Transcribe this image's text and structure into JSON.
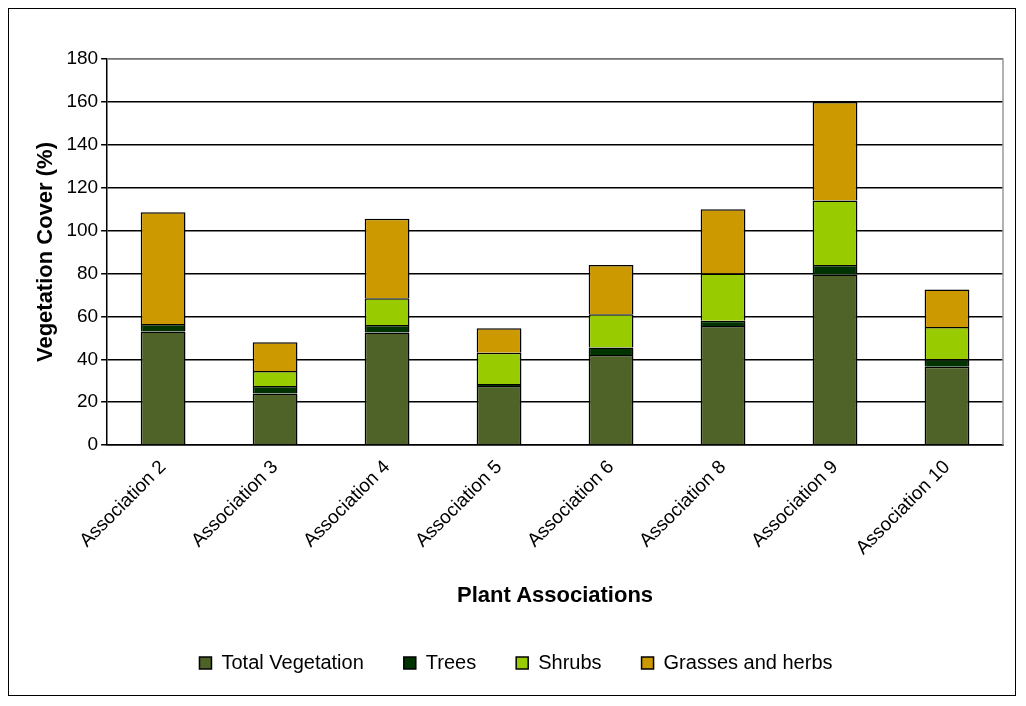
{
  "chart_data": {
    "type": "bar",
    "stacked": true,
    "xlabel": "Plant Associations",
    "ylabel": "Vegetation Cover (%)",
    "categories": [
      "Association 2",
      "Association 3",
      "Association 4",
      "Association 5",
      "Association 6",
      "Association 8",
      "Association 9",
      "Association 10"
    ],
    "series": [
      {
        "name": "Total Vegetation",
        "color": "#4f6228",
        "values": [
          53,
          24,
          52.5,
          27.5,
          42,
          55.5,
          79.5,
          36.5
        ]
      },
      {
        "name": "Trees",
        "color": "#003300",
        "values": [
          3.5,
          3.5,
          3.5,
          1,
          3.5,
          2.5,
          4.5,
          3.5
        ]
      },
      {
        "name": "Shrubs",
        "color": "#99cc00",
        "values": [
          0,
          7,
          12.5,
          14.5,
          15.5,
          22,
          30,
          15
        ]
      },
      {
        "name": "Grasses and herbs",
        "color": "#cc9900",
        "values": [
          52,
          13.5,
          37,
          11.5,
          23,
          30,
          46,
          17.5
        ]
      }
    ],
    "ylim": [
      0,
      180
    ],
    "yticks": [
      0,
      20,
      40,
      60,
      80,
      100,
      120,
      140,
      160,
      180
    ],
    "grid": "y",
    "legend": "bottom"
  }
}
